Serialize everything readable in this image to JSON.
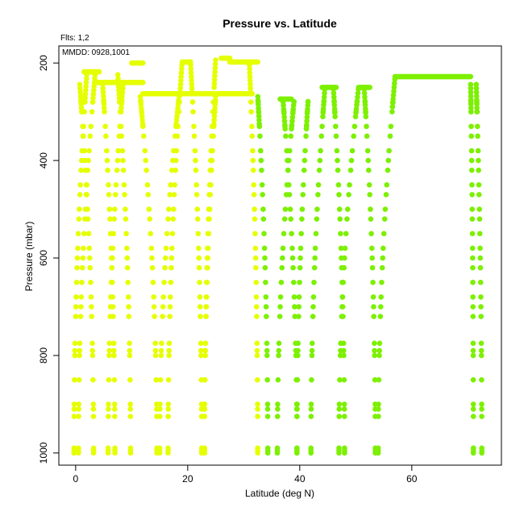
{
  "chart_data": {
    "type": "scatter",
    "title": "Pressure vs. Latitude",
    "xlabel": "Latitude (deg N)",
    "ylabel": "Pressure (mbar)",
    "xlim": [
      -3,
      76
    ],
    "ylim": [
      1025,
      165
    ],
    "y_inverted": true,
    "grid": false,
    "legend": "none",
    "xticks": [
      0,
      20,
      40,
      60
    ],
    "yticks": [
      200,
      400,
      600,
      800,
      1000
    ],
    "annotations": [
      "Flts: 1,2",
      "MMDD: 0928,1001"
    ],
    "series": [
      {
        "color": "#e5ff00",
        "profiles": [
          {
            "x0": -0.3,
            "x1": 2.0,
            "top": 220
          },
          {
            "x0": 0.5,
            "x1": 3.5,
            "top": 220
          },
          {
            "x0": 3.2,
            "x1": 0.7,
            "top": 240
          },
          {
            "x0": 7.0,
            "x1": 4.8,
            "top": 240
          },
          {
            "x0": 5.8,
            "x1": 8.5,
            "top": 240
          },
          {
            "x0": 9.8,
            "x1": 7.5,
            "top": 220
          },
          {
            "x0": 14.5,
            "x1": 11.5,
            "top": 265
          },
          {
            "x0": 15.0,
            "x1": 18.5,
            "top": 265
          },
          {
            "x0": 16.5,
            "x1": 19.0,
            "top": 200
          },
          {
            "x0": 22.5,
            "x1": 20.5,
            "top": 200
          },
          {
            "x0": 23.0,
            "x1": 25.0,
            "top": 265
          },
          {
            "x0": 23.0,
            "x1": 25.0,
            "top": 190
          },
          {
            "x0": 32.5,
            "x1": 31.0,
            "top": 200
          }
        ],
        "plateaus": [
          {
            "x0": 1.5,
            "x1": 4.2,
            "y": 218
          },
          {
            "x0": 3.5,
            "x1": 12.0,
            "y": 240
          },
          {
            "x0": 10.0,
            "x1": 12.0,
            "y": 200
          },
          {
            "x0": 12.0,
            "x1": 31.5,
            "y": 263
          },
          {
            "x0": 19.0,
            "x1": 20.5,
            "y": 198
          },
          {
            "x0": 26.0,
            "x1": 27.5,
            "y": 190
          },
          {
            "x0": 27.5,
            "x1": 32.5,
            "y": 198
          }
        ]
      },
      {
        "color": "#7cf000",
        "profiles": [
          {
            "x0": 34.3,
            "x1": 32.5,
            "top": 265
          },
          {
            "x0": 36.0,
            "x1": 39.0,
            "top": 275
          },
          {
            "x0": 39.5,
            "x1": 37.0,
            "top": 275
          },
          {
            "x0": 39.5,
            "x1": 41.5,
            "top": 275
          },
          {
            "x0": 42.0,
            "x1": 44.5,
            "top": 250
          },
          {
            "x0": 48.0,
            "x1": 46.0,
            "top": 250
          },
          {
            "x0": 47.0,
            "x1": 50.5,
            "top": 250
          },
          {
            "x0": 53.5,
            "x1": 51.5,
            "top": 250
          },
          {
            "x0": 54.0,
            "x1": 57.0,
            "top": 230
          },
          {
            "x0": 71.0,
            "x1": 70.5,
            "top": 240
          },
          {
            "x0": 72.5,
            "x1": 71.5,
            "top": 240
          }
        ],
        "plateaus": [
          {
            "x0": 36.5,
            "x1": 38.5,
            "y": 274
          },
          {
            "x0": 44.0,
            "x1": 46.5,
            "y": 250
          },
          {
            "x0": 50.5,
            "x1": 52.5,
            "y": 250
          },
          {
            "x0": 57.0,
            "x1": 70.5,
            "y": 228
          }
        ]
      }
    ]
  }
}
